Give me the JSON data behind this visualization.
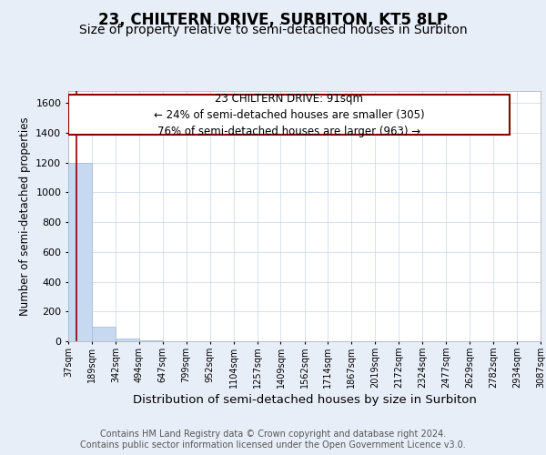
{
  "title": "23, CHILTERN DRIVE, SURBITON, KT5 8LP",
  "subtitle": "Size of property relative to semi-detached houses in Surbiton",
  "xlabel": "Distribution of semi-detached houses by size in Surbiton",
  "ylabel": "Number of semi-detached properties",
  "bin_edges": [
    37,
    189,
    342,
    494,
    647,
    799,
    952,
    1104,
    1257,
    1409,
    1562,
    1714,
    1867,
    2019,
    2172,
    2324,
    2477,
    2629,
    2782,
    2934,
    3087
  ],
  "bar_heights": [
    1195,
    95,
    20,
    5,
    2,
    1,
    0,
    0,
    0,
    0,
    0,
    0,
    0,
    0,
    0,
    0,
    0,
    0,
    0,
    0
  ],
  "bar_color": "#c6d9f0",
  "bar_edgecolor": "#a0b8d8",
  "property_value": 91,
  "property_line_color": "#8b0000",
  "annotation_line1": "23 CHILTERN DRIVE: 91sqm",
  "annotation_line2": "← 24% of semi-detached houses are smaller (305)",
  "annotation_line3": "76% of semi-detached houses are larger (963) →",
  "annotation_box_color": "#8b0000",
  "annotation_bg_color": "#ffffff",
  "footer_text": "Contains HM Land Registry data © Crown copyright and database right 2024.\nContains public sector information licensed under the Open Government Licence v3.0.",
  "ylim": [
    0,
    1680
  ],
  "background_color": "#e8eef8",
  "plot_background": "#ffffff",
  "grid_color": "#c8d4e8",
  "title_fontsize": 12,
  "subtitle_fontsize": 10,
  "xlabel_fontsize": 9.5,
  "ylabel_fontsize": 8.5,
  "footer_fontsize": 7,
  "annot_fontsize": 8.5
}
